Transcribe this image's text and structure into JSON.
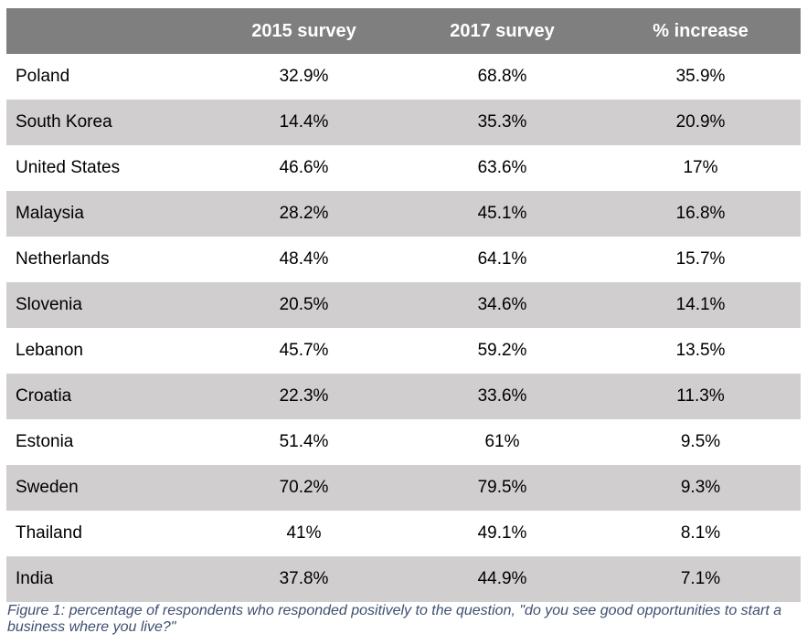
{
  "chart_data": {
    "type": "table",
    "columns": [
      "",
      "2015 survey",
      "2017 survey",
      "% increase"
    ],
    "rows": [
      {
        "country": "Poland",
        "y2015": "32.9%",
        "y2017": "68.8%",
        "increase": "35.9%"
      },
      {
        "country": "South Korea",
        "y2015": "14.4%",
        "y2017": "35.3%",
        "increase": "20.9%"
      },
      {
        "country": "United States",
        "y2015": "46.6%",
        "y2017": "63.6%",
        "increase": "17%"
      },
      {
        "country": "Malaysia",
        "y2015": "28.2%",
        "y2017": "45.1%",
        "increase": "16.8%"
      },
      {
        "country": "Netherlands",
        "y2015": "48.4%",
        "y2017": "64.1%",
        "increase": "15.7%"
      },
      {
        "country": "Slovenia",
        "y2015": "20.5%",
        "y2017": "34.6%",
        "increase": "14.1%"
      },
      {
        "country": "Lebanon",
        "y2015": "45.7%",
        "y2017": "59.2%",
        "increase": "13.5%"
      },
      {
        "country": "Croatia",
        "y2015": "22.3%",
        "y2017": "33.6%",
        "increase": "11.3%"
      },
      {
        "country": "Estonia",
        "y2015": "51.4%",
        "y2017": "61%",
        "increase": "9.5%"
      },
      {
        "country": "Sweden",
        "y2015": "70.2%",
        "y2017": "79.5%",
        "increase": "9.3%"
      },
      {
        "country": "Thailand",
        "y2015": "41%",
        "y2017": "49.1%",
        "increase": "8.1%"
      },
      {
        "country": "India",
        "y2015": "37.8%",
        "y2017": "44.9%",
        "increase": "7.1%"
      }
    ],
    "caption": "Figure 1: percentage of respondents who responded positively to the question, \"do you see good opportunities to start a business where you live?\""
  },
  "colors": {
    "header_bg": "#7f7f7f",
    "header_text": "#ffffff",
    "stripe_bg": "#d0cecf",
    "caption_text": "#3f4f6f"
  }
}
